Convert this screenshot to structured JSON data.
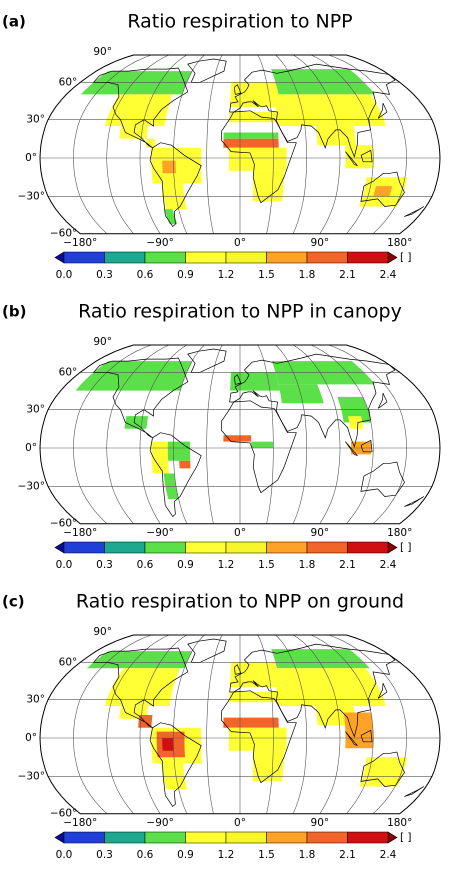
{
  "figure": {
    "projection": "robinson",
    "graticule": 30,
    "lat_range": [
      -60,
      90
    ],
    "xticks": [
      {
        "value": -180,
        "label": "−180°"
      },
      {
        "value": -90,
        "label": "−90°"
      },
      {
        "value": 0,
        "label": "0°"
      },
      {
        "value": 90,
        "label": "90°"
      },
      {
        "value": 180,
        "label": "180°"
      }
    ],
    "yticks": [
      {
        "value": 90,
        "label": "90°"
      },
      {
        "value": 60,
        "label": "60°"
      },
      {
        "value": 30,
        "label": "30°"
      },
      {
        "value": 0,
        "label": "0°"
      },
      {
        "value": -30,
        "label": "−30°"
      },
      {
        "value": -60,
        "label": "−60°"
      }
    ],
    "colorbar": {
      "ticks": [
        {
          "value": 0,
          "label": "0.0"
        },
        {
          "value": 0.3,
          "label": "0.3"
        },
        {
          "value": 0.6,
          "label": "0.6"
        },
        {
          "value": 0.9,
          "label": "0.9"
        },
        {
          "value": 1.2,
          "label": "1.2"
        },
        {
          "value": 1.5,
          "label": "1.5"
        },
        {
          "value": 1.8,
          "label": "1.8"
        },
        {
          "value": 2.1,
          "label": "2.1"
        },
        {
          "value": 2.4,
          "label": "2.4"
        }
      ],
      "colors": [
        "#1f3fd6",
        "#1fa890",
        "#5ce04a",
        "#ffff33",
        "#f6f62a",
        "#ffa328",
        "#f2652a",
        "#d01010"
      ],
      "extend_colors": [
        "#0a0a9a",
        "#8a0000"
      ],
      "unit": "[ ]"
    },
    "panels": [
      {
        "label": "(a)",
        "title": "Ratio respiration to NPP",
        "type": "map",
        "cells": [
          {
            "lon": [
              -165,
              -60
            ],
            "lat": [
              50,
              70
            ],
            "value": 0.75
          },
          {
            "lon": [
              -125,
              -70
            ],
            "lat": [
              25,
              50
            ],
            "value": 1.0
          },
          {
            "lon": [
              -110,
              -85
            ],
            "lat": [
              15,
              25
            ],
            "value": 1.0
          },
          {
            "lon": [
              -85,
              -77
            ],
            "lat": [
              8,
              15
            ],
            "value": 1.0
          },
          {
            "lon": [
              -80,
              -35
            ],
            "lat": [
              -20,
              8
            ],
            "value": 1.0
          },
          {
            "lon": [
              -72,
              -52
            ],
            "lat": [
              -40,
              -20
            ],
            "value": 1.0
          },
          {
            "lon": [
              -74,
              -66
            ],
            "lat": [
              -52,
              -40
            ],
            "value": 0.75
          },
          {
            "lon": [
              -70,
              -58
            ],
            "lat": [
              -12,
              -2
            ],
            "value": 1.6
          },
          {
            "lon": [
              -10,
              40
            ],
            "lat": [
              40,
              60
            ],
            "value": 1.0
          },
          {
            "lon": [
              40,
              140
            ],
            "lat": [
              50,
              72
            ],
            "value": 0.75
          },
          {
            "lon": [
              35,
              135
            ],
            "lat": [
              25,
              50
            ],
            "value": 1.0
          },
          {
            "lon": [
              70,
              105
            ],
            "lat": [
              10,
              25
            ],
            "value": 1.0
          },
          {
            "lon": [
              95,
              120
            ],
            "lat": [
              -8,
              10
            ],
            "value": 1.0
          },
          {
            "lon": [
              -10,
              35
            ],
            "lat": [
              28,
              36
            ],
            "value": 1.0
          },
          {
            "lon": [
              -15,
              35
            ],
            "lat": [
              15,
              20
            ],
            "value": 0.75
          },
          {
            "lon": [
              -15,
              35
            ],
            "lat": [
              8,
              15
            ],
            "value": 1.8
          },
          {
            "lon": [
              -10,
              42
            ],
            "lat": [
              -10,
              8
            ],
            "value": 1.0
          },
          {
            "lon": [
              12,
              40
            ],
            "lat": [
              -34,
              -10
            ],
            "value": 1.0
          },
          {
            "lon": [
              115,
              152
            ],
            "lat": [
              -38,
              -15
            ],
            "value": 1.0
          },
          {
            "lon": [
              125,
              140
            ],
            "lat": [
              -30,
              -22
            ],
            "value": 1.6
          }
        ]
      },
      {
        "label": "(b)",
        "title": "Ratio respiration to NPP in canopy",
        "type": "map",
        "cells": [
          {
            "lon": [
              -165,
              -60
            ],
            "lat": [
              45,
              70
            ],
            "value": 0.75
          },
          {
            "lon": [
              -105,
              -85
            ],
            "lat": [
              15,
              25
            ],
            "value": 0.75
          },
          {
            "lon": [
              -80,
              -65
            ],
            "lat": [
              -20,
              5
            ],
            "value": 1.0
          },
          {
            "lon": [
              -65,
              -45
            ],
            "lat": [
              -10,
              5
            ],
            "value": 0.75
          },
          {
            "lon": [
              -55,
              -45
            ],
            "lat": [
              -16,
              -10
            ],
            "value": 1.8
          },
          {
            "lon": [
              -70,
              -60
            ],
            "lat": [
              -40,
              -20
            ],
            "value": 0.75
          },
          {
            "lon": [
              -10,
              40
            ],
            "lat": [
              45,
              60
            ],
            "value": 0.75
          },
          {
            "lon": [
              40,
              140
            ],
            "lat": [
              50,
              70
            ],
            "value": 0.75
          },
          {
            "lon": [
              40,
              80
            ],
            "lat": [
              35,
              50
            ],
            "value": 0.75
          },
          {
            "lon": [
              95,
              120
            ],
            "lat": [
              20,
              40
            ],
            "value": 0.75
          },
          {
            "lon": [
              100,
              112
            ],
            "lat": [
              15,
              25
            ],
            "value": 1.0
          },
          {
            "lon": [
              -15,
              10
            ],
            "lat": [
              5,
              10
            ],
            "value": 1.8
          },
          {
            "lon": [
              10,
              30
            ],
            "lat": [
              0,
              5
            ],
            "value": 0.75
          },
          {
            "lon": [
              100,
              118
            ],
            "lat": [
              -5,
              5
            ],
            "value": 1.6
          }
        ]
      },
      {
        "label": "(c)",
        "title": "Ratio respiration to NPP on ground",
        "type": "map",
        "cells": [
          {
            "lon": [
              -165,
              -60
            ],
            "lat": [
              55,
              70
            ],
            "value": 0.75
          },
          {
            "lon": [
              -125,
              -65
            ],
            "lat": [
              25,
              55
            ],
            "value": 1.0
          },
          {
            "lon": [
              -110,
              -85
            ],
            "lat": [
              15,
              25
            ],
            "value": 1.0
          },
          {
            "lon": [
              -92,
              -80
            ],
            "lat": [
              8,
              18
            ],
            "value": 1.8
          },
          {
            "lon": [
              -80,
              -35
            ],
            "lat": [
              -20,
              8
            ],
            "value": 1.0
          },
          {
            "lon": [
              -75,
              -50
            ],
            "lat": [
              -15,
              5
            ],
            "value": 1.8
          },
          {
            "lon": [
              -70,
              -60
            ],
            "lat": [
              -10,
              0
            ],
            "value": 2.1
          },
          {
            "lon": [
              -72,
              -52
            ],
            "lat": [
              -40,
              -20
            ],
            "value": 1.0
          },
          {
            "lon": [
              -10,
              40
            ],
            "lat": [
              40,
              60
            ],
            "value": 1.0
          },
          {
            "lon": [
              40,
              140
            ],
            "lat": [
              55,
              72
            ],
            "value": 0.75
          },
          {
            "lon": [
              35,
              135
            ],
            "lat": [
              25,
              55
            ],
            "value": 1.0
          },
          {
            "lon": [
              70,
              105
            ],
            "lat": [
              10,
              25
            ],
            "value": 1.0
          },
          {
            "lon": [
              95,
              120
            ],
            "lat": [
              -8,
              20
            ],
            "value": 1.6
          },
          {
            "lon": [
              -10,
              35
            ],
            "lat": [
              28,
              36
            ],
            "value": 1.0
          },
          {
            "lon": [
              -15,
              35
            ],
            "lat": [
              8,
              16
            ],
            "value": 1.9
          },
          {
            "lon": [
              -10,
              42
            ],
            "lat": [
              -10,
              8
            ],
            "value": 1.0
          },
          {
            "lon": [
              12,
              40
            ],
            "lat": [
              -34,
              -10
            ],
            "value": 1.0
          },
          {
            "lon": [
              115,
              152
            ],
            "lat": [
              -38,
              -15
            ],
            "value": 1.0
          }
        ]
      }
    ]
  }
}
